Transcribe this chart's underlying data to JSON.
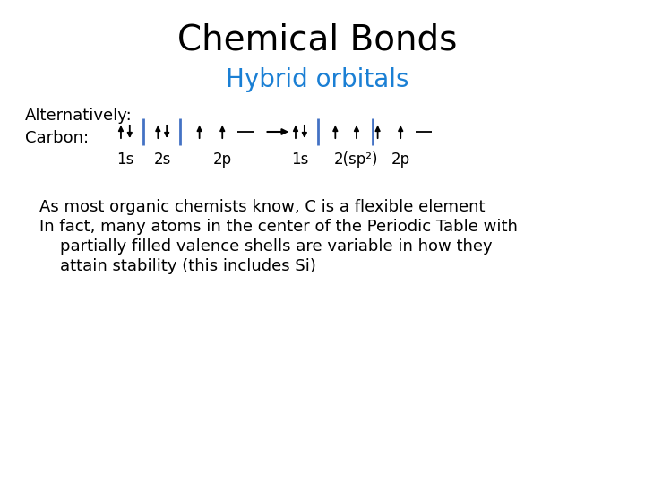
{
  "title": "Chemical Bonds",
  "subtitle": "Hybrid orbitals",
  "subtitle_color": "#1a7fd4",
  "title_fontsize": 28,
  "subtitle_fontsize": 20,
  "bg_color": "#ffffff",
  "text_color": "#000000",
  "orbital_line_color": "#4472c4",
  "alternatively_text": "Alternatively:",
  "carbon_text": "Carbon:",
  "body_text_line1": "As most organic chemists know, C is a flexible element",
  "body_text_line2": "In fact, many atoms in the center of the Periodic Table with",
  "body_text_line3": "    partially filled valence shells are variable in how they",
  "body_text_line4": "    attain stability (this includes Si)",
  "body_fontsize": 13,
  "label_fontsize": 12,
  "alt_carbon_fontsize": 13
}
